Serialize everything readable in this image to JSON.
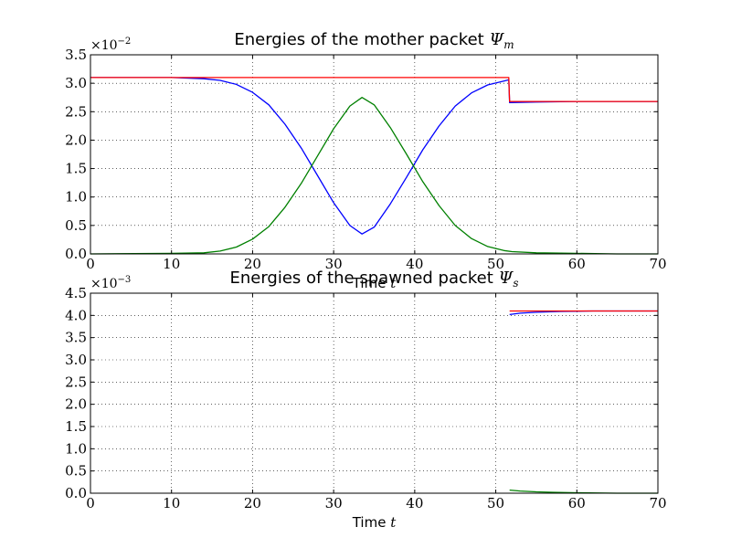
{
  "chart_data": [
    {
      "type": "line",
      "title_text": "Energies of the mother packet ",
      "title_symbol": "Ψ",
      "title_subscript": "m",
      "xlabel_text": "Time ",
      "xlabel_var": "t",
      "multiplier_base": "×10",
      "multiplier_exponent": "−2",
      "xlim": [
        0,
        70
      ],
      "ylim": [
        0.0,
        3.5
      ],
      "xticks": [
        0,
        10,
        20,
        30,
        40,
        50,
        60,
        70
      ],
      "xtick_labels": [
        "0",
        "10",
        "20",
        "30",
        "40",
        "50",
        "60",
        "70"
      ],
      "yticks": [
        0.0,
        0.5,
        1.0,
        1.5,
        2.0,
        2.5,
        3.0,
        3.5
      ],
      "ytick_labels": [
        "0.0",
        "0.5",
        "1.0",
        "1.5",
        "2.0",
        "2.5",
        "3.0",
        "3.5"
      ],
      "grid": true,
      "series": [
        {
          "color": "#0000ff",
          "x": [
            0,
            10,
            14,
            16,
            18,
            20,
            22,
            24,
            26,
            28,
            30,
            32,
            33.5,
            35,
            37,
            39,
            41,
            43,
            45,
            47,
            49,
            51,
            51.6,
            51.7,
            55,
            60,
            65,
            70
          ],
          "y": [
            3.1,
            3.1,
            3.08,
            3.05,
            2.98,
            2.84,
            2.62,
            2.28,
            1.86,
            1.38,
            0.9,
            0.5,
            0.35,
            0.47,
            0.88,
            1.35,
            1.83,
            2.25,
            2.6,
            2.83,
            2.97,
            3.04,
            3.06,
            2.66,
            2.67,
            2.68,
            2.68,
            2.68
          ]
        },
        {
          "color": "#008000",
          "x": [
            0,
            10,
            14,
            16,
            18,
            20,
            22,
            24,
            26,
            28,
            30,
            32,
            33.5,
            35,
            37,
            39,
            41,
            43,
            45,
            47,
            49,
            51,
            52,
            55,
            60,
            65,
            70
          ],
          "y": [
            0.0,
            0.01,
            0.02,
            0.05,
            0.12,
            0.26,
            0.48,
            0.82,
            1.24,
            1.72,
            2.2,
            2.6,
            2.75,
            2.62,
            2.22,
            1.75,
            1.27,
            0.85,
            0.5,
            0.27,
            0.13,
            0.06,
            0.04,
            0.02,
            0.01,
            0.0,
            0.0
          ]
        },
        {
          "color": "#ff0000",
          "x": [
            0,
            51.6,
            51.7,
            70
          ],
          "y": [
            3.1,
            3.1,
            2.68,
            2.68
          ]
        }
      ]
    },
    {
      "type": "line",
      "title_text": "Energies of the spawned packet ",
      "title_symbol": "Ψ",
      "title_subscript": "s",
      "xlabel_text": "Time ",
      "xlabel_var": "t",
      "multiplier_base": "×10",
      "multiplier_exponent": "−3",
      "xlim": [
        0,
        70
      ],
      "ylim": [
        0.0,
        4.5
      ],
      "xticks": [
        0,
        10,
        20,
        30,
        40,
        50,
        60,
        70
      ],
      "xtick_labels": [
        "0",
        "10",
        "20",
        "30",
        "40",
        "50",
        "60",
        "70"
      ],
      "yticks": [
        0.0,
        0.5,
        1.0,
        1.5,
        2.0,
        2.5,
        3.0,
        3.5,
        4.0,
        4.5
      ],
      "ytick_labels": [
        "0.0",
        "0.5",
        "1.0",
        "1.5",
        "2.0",
        "2.5",
        "3.0",
        "3.5",
        "4.0",
        "4.5"
      ],
      "grid": true,
      "series": [
        {
          "color": "#0000ff",
          "x": [
            51.7,
            53,
            55,
            58,
            62,
            70
          ],
          "y": [
            4.02,
            4.05,
            4.07,
            4.09,
            4.1,
            4.1
          ]
        },
        {
          "color": "#008000",
          "x": [
            51.7,
            53,
            55,
            57,
            60,
            65,
            70
          ],
          "y": [
            0.07,
            0.05,
            0.03,
            0.02,
            0.01,
            0.0,
            0.0
          ]
        },
        {
          "color": "#ff0000",
          "x": [
            51.7,
            70
          ],
          "y": [
            4.1,
            4.1
          ]
        }
      ]
    }
  ]
}
